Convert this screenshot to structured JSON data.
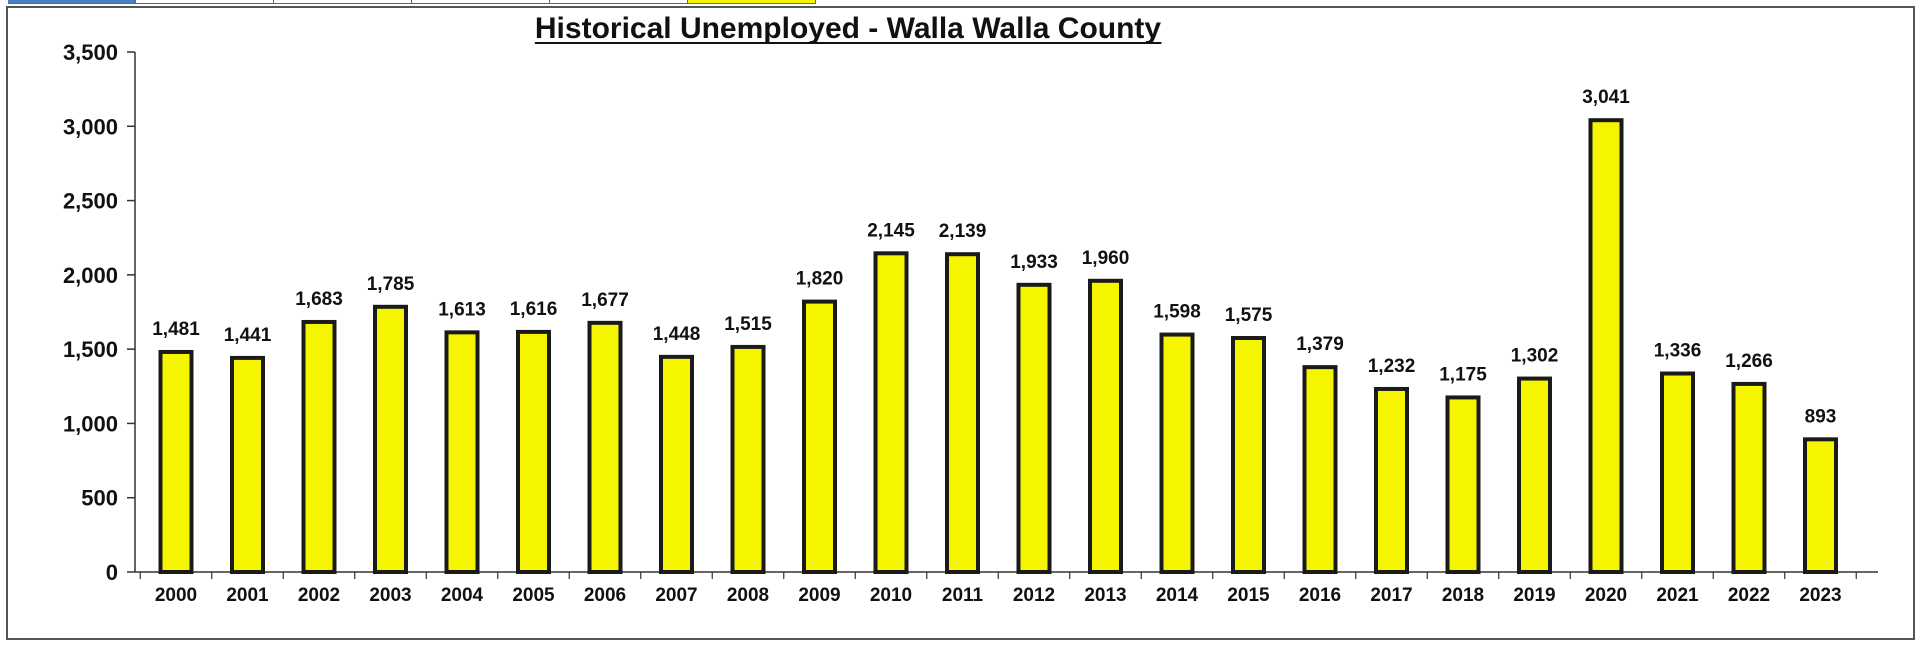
{
  "chart_data": {
    "type": "bar",
    "title": "Historical Unemployed - Walla Walla County",
    "xlabel": "",
    "ylabel": "",
    "ylim": [
      0,
      3500
    ],
    "yticks": [
      "0",
      "500",
      "1,000",
      "1,500",
      "2,000",
      "2,500",
      "3,000",
      "3,500"
    ],
    "categories": [
      "2000",
      "2001",
      "2002",
      "2003",
      "2004",
      "2005",
      "2006",
      "2007",
      "2008",
      "2009",
      "2010",
      "2011",
      "2012",
      "2013",
      "2014",
      "2015",
      "2016",
      "2017",
      "2018",
      "2019",
      "2020",
      "2021",
      "2022",
      "2023"
    ],
    "values": [
      1481,
      1441,
      1683,
      1785,
      1613,
      1616,
      1677,
      1448,
      1515,
      1820,
      2145,
      2139,
      1933,
      1960,
      1598,
      1575,
      1379,
      1232,
      1175,
      1302,
      3041,
      1336,
      1266,
      893
    ],
    "value_labels": [
      "1,481",
      "1,441",
      "1,683",
      "1,785",
      "1,613",
      "1,616",
      "1,677",
      "1,448",
      "1,515",
      "1,820",
      "2,145",
      "2,139",
      "1,933",
      "1,960",
      "1,598",
      "1,575",
      "1,379",
      "1,232",
      "1,175",
      "1,302",
      "3,041",
      "1,336",
      "1,266",
      "893"
    ],
    "grid": false,
    "legend": "none",
    "colors": {
      "bar_fill": "#f5f500",
      "bar_edge": "#1a1a1a",
      "axis": "#333333"
    }
  }
}
